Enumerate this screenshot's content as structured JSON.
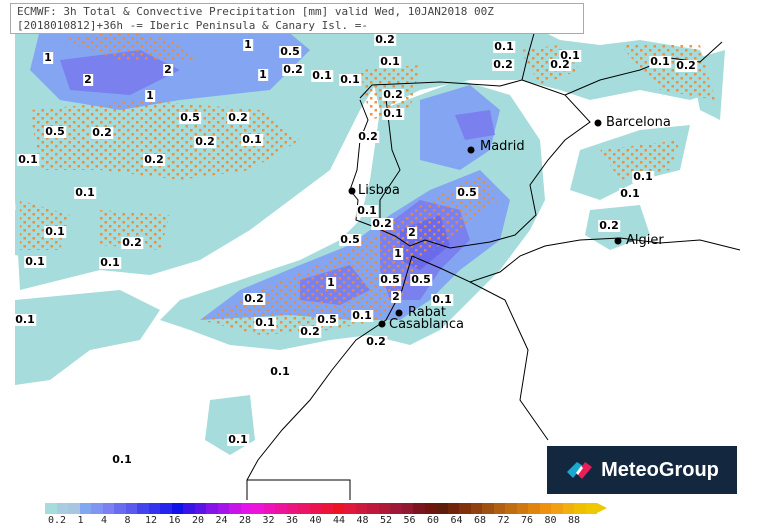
{
  "header": {
    "line1": "ECMWF: 3h Total & Convective Precipitation [mm] valid Wed, 10JAN2018 00Z",
    "line2": "[2018010812]+36h -= Iberic Peninsula & Canary Isl. =-"
  },
  "map": {
    "cities": [
      "Barcelona",
      "Madrid",
      "Lisboa",
      "Algier",
      "Rabat",
      "Casablanca"
    ],
    "contour_labels": [
      "1",
      "2",
      "2",
      "1",
      "0.5",
      "0.2",
      "0.1",
      "1",
      "1",
      "0.5",
      "0.2",
      "0.5",
      "0.2",
      "0.2",
      "0.1",
      "0.1",
      "0.2",
      "0.1",
      "0.1",
      "0.2",
      "0.1",
      "0.1",
      "0.2",
      "0.1",
      "0.1",
      "0.2",
      "0.2",
      "0.1",
      "0.2",
      "0.1",
      "0.1",
      "0.2",
      "0.1",
      "0.2",
      "0.1",
      "0.1",
      "0.2",
      "0.5",
      "0.1",
      "0.2",
      "0.5",
      "2",
      "1",
      "1",
      "0.5",
      "0.5",
      "2",
      "0.2",
      "0.5",
      "0.2",
      "0.1",
      "0.1",
      "0.1",
      "0.2",
      "0.1",
      "0.1",
      "0.1",
      "0.1"
    ],
    "colors": {
      "light": "#a6dcdc",
      "mid": "#a8c6e2",
      "blue1": "#84a6f2",
      "blue2": "#7a80ee",
      "blue3": "#6a6aea",
      "dots": "#f08a30",
      "land_line": "#000000"
    }
  },
  "logo": {
    "text": "MeteoGroup"
  },
  "colorbar": {
    "unit": "mm",
    "ticks": [
      "0.2",
      "1",
      "4",
      "8",
      "12",
      "16",
      "20",
      "24",
      "28",
      "32",
      "36",
      "40",
      "44",
      "48",
      "52",
      "56",
      "60",
      "64",
      "68",
      "72",
      "76",
      "80",
      "88"
    ],
    "colors": [
      "#a6dcdc",
      "#a8cce0",
      "#a8c6e2",
      "#80a8f2",
      "#8094f2",
      "#7c80f2",
      "#6a6cf0",
      "#5a5aee",
      "#4444ee",
      "#3434ee",
      "#2424ee",
      "#1010ea",
      "#3a14e6",
      "#5a14e6",
      "#8414e8",
      "#a414e8",
      "#c814e8",
      "#e414e8",
      "#ec14d8",
      "#ec14b8",
      "#ec1498",
      "#ec1480",
      "#ec1468",
      "#ec1450",
      "#ec1438",
      "#ec1420",
      "#e0183c",
      "#cc1a3c",
      "#c0183c",
      "#b01838",
      "#a01838",
      "#901830",
      "#7c1420",
      "#701410",
      "#601c0a",
      "#70240a",
      "#80300a",
      "#904010",
      "#a05010",
      "#b06010",
      "#c06c10",
      "#d07810",
      "#e08410",
      "#f09010",
      "#f0a010",
      "#f0b010",
      "#f0c000",
      "#f0c800"
    ]
  }
}
